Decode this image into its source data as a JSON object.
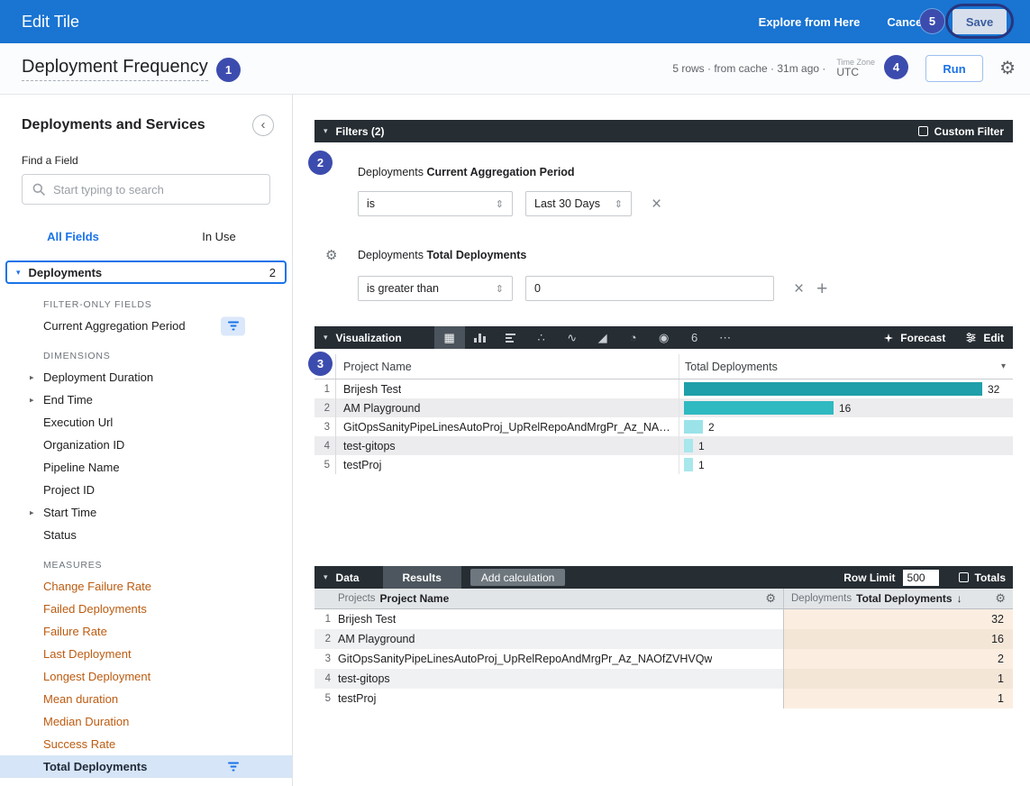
{
  "topbar": {
    "title": "Edit Tile",
    "explore_link": "Explore from Here",
    "cancel_label": "Cancel",
    "save_label": "Save"
  },
  "header": {
    "title": "Deployment Frequency",
    "status_text": "5 rows · from cache · 31m ago ·",
    "timezone_label": "Time Zone",
    "timezone_value": "UTC",
    "run_label": "Run"
  },
  "sidebar": {
    "title": "Deployments and Services",
    "find_label": "Find a Field",
    "search_placeholder": "Start typing to search",
    "tabs": [
      {
        "label": "All Fields",
        "active": true
      },
      {
        "label": "In Use",
        "active": false
      }
    ],
    "group": {
      "label": "Deployments",
      "count": "2"
    },
    "sections": [
      {
        "heading": "FILTER-ONLY FIELDS",
        "measure": false,
        "items": [
          {
            "label": "Current Aggregation Period",
            "filter_icon": true
          }
        ]
      },
      {
        "heading": "DIMENSIONS",
        "measure": false,
        "items": [
          {
            "label": "Deployment Duration",
            "expandable": true
          },
          {
            "label": "End Time",
            "expandable": true
          },
          {
            "label": "Execution Url"
          },
          {
            "label": "Organization ID"
          },
          {
            "label": "Pipeline Name"
          },
          {
            "label": "Project ID"
          },
          {
            "label": "Start Time",
            "expandable": true
          },
          {
            "label": "Status"
          }
        ]
      },
      {
        "heading": "MEASURES",
        "measure": true,
        "items": [
          {
            "label": "Change Failure Rate"
          },
          {
            "label": "Failed Deployments"
          },
          {
            "label": "Failure Rate"
          },
          {
            "label": "Last Deployment"
          },
          {
            "label": "Longest Deployment"
          },
          {
            "label": "Mean duration"
          },
          {
            "label": "Median Duration"
          },
          {
            "label": "Success Rate"
          },
          {
            "label": "Total Deployments",
            "selected": true,
            "filter_icon": true
          }
        ]
      }
    ]
  },
  "filters": {
    "title": "Filters (2)",
    "custom_filter_label": "Custom Filter",
    "rows": [
      {
        "field_group": "Deployments",
        "field_name": "Current Aggregation Period",
        "operator": "is",
        "value": "Last 30 Days"
      },
      {
        "field_group": "Deployments",
        "field_name": "Total Deployments",
        "operator": "is greater than",
        "value": "0"
      }
    ]
  },
  "visualization": {
    "title": "Visualization",
    "forecast_label": "Forecast",
    "edit_label": "Edit",
    "types": [
      "table",
      "column-chart",
      "bar-chart",
      "scatter-plot",
      "line-chart",
      "area-chart",
      "donut-chart",
      "map",
      "single-value",
      "more"
    ],
    "type_glyphs": {
      "table": "▦",
      "scatter-plot": "∴",
      "line-chart": "∿",
      "area-chart": "◢",
      "donut-chart": "◔",
      "map": "◉",
      "single-value": "6",
      "more": "⋯"
    }
  },
  "chart_data": {
    "type": "bar",
    "orientation": "horizontal",
    "title": "",
    "columns": [
      "Project Name",
      "Total Deployments"
    ],
    "categories": [
      "Brijesh Test",
      "AM Playground",
      "GitOpsSanityPipeLinesAutoProj_UpRelRepoAndMrgPr_Az_NAOfZVHVQw",
      "test-gitops",
      "testProj"
    ],
    "values": [
      32,
      16,
      2,
      1,
      1
    ],
    "max_value": 32,
    "bar_colors": [
      "#1E9FAA",
      "#2FB9C1",
      "#9BE3E9",
      "#A8E7EC",
      "#A8E7EC"
    ]
  },
  "data_panel": {
    "title": "Data",
    "results_tab_label": "Results",
    "add_calculation_label": "Add calculation",
    "row_limit_label": "Row Limit",
    "row_limit_value": "500",
    "totals_label": "Totals",
    "columns": [
      {
        "group": "Projects",
        "name": "Project Name"
      },
      {
        "group": "Deployments",
        "name": "Total Deployments",
        "sort": "↓"
      }
    ],
    "rows": [
      {
        "name": "Brijesh Test",
        "value": "32"
      },
      {
        "name": "AM Playground",
        "value": "16"
      },
      {
        "name": "GitOpsSanityPipeLinesAutoProj_UpRelRepoAndMrgPr_Az_NAOfZVHVQw",
        "value": "2"
      },
      {
        "name": "test-gitops",
        "value": "1"
      },
      {
        "name": "testProj",
        "value": "1"
      }
    ]
  },
  "annotations": {
    "badges": [
      "1",
      "2",
      "3",
      "4",
      "5"
    ]
  },
  "colors": {
    "topbar_blue": "#1974D2",
    "accent_blue": "#1A73E8",
    "panel_dark": "#262D33",
    "measure_orange": "#BC5B10",
    "selected_row_bg": "#D6E5F7",
    "measure_cell_bg": "#FBEEE1",
    "badge_indigo": "#3C4CAE"
  }
}
